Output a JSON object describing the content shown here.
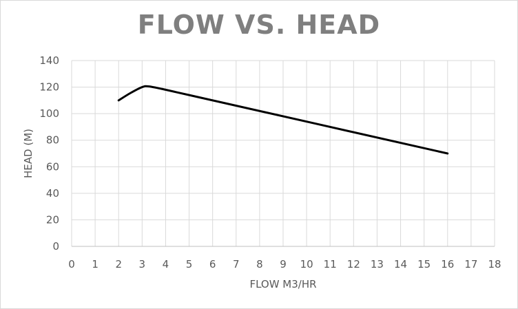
{
  "chart_data": {
    "type": "line",
    "title": "FLOW VS. HEAD",
    "xlabel": "FLOW M3/HR",
    "ylabel": "HEAD (M)",
    "xlim": [
      0,
      18
    ],
    "ylim": [
      0,
      140
    ],
    "xticks": [
      "0",
      "1",
      "2",
      "3",
      "4",
      "5",
      "6",
      "7",
      "8",
      "9",
      "10",
      "11",
      "12",
      "13",
      "14",
      "15",
      "16",
      "17",
      "18"
    ],
    "yticks": [
      "0",
      "20",
      "40",
      "60",
      "80",
      "100",
      "120",
      "140"
    ],
    "grid": true,
    "legend": "none",
    "series": [
      {
        "color": "#000000",
        "points": [
          [
            2,
            110
          ],
          [
            2.5,
            115.5
          ],
          [
            3,
            120
          ],
          [
            3.3,
            120.5
          ],
          [
            4,
            118
          ],
          [
            5,
            114
          ],
          [
            16,
            70
          ]
        ]
      }
    ]
  }
}
